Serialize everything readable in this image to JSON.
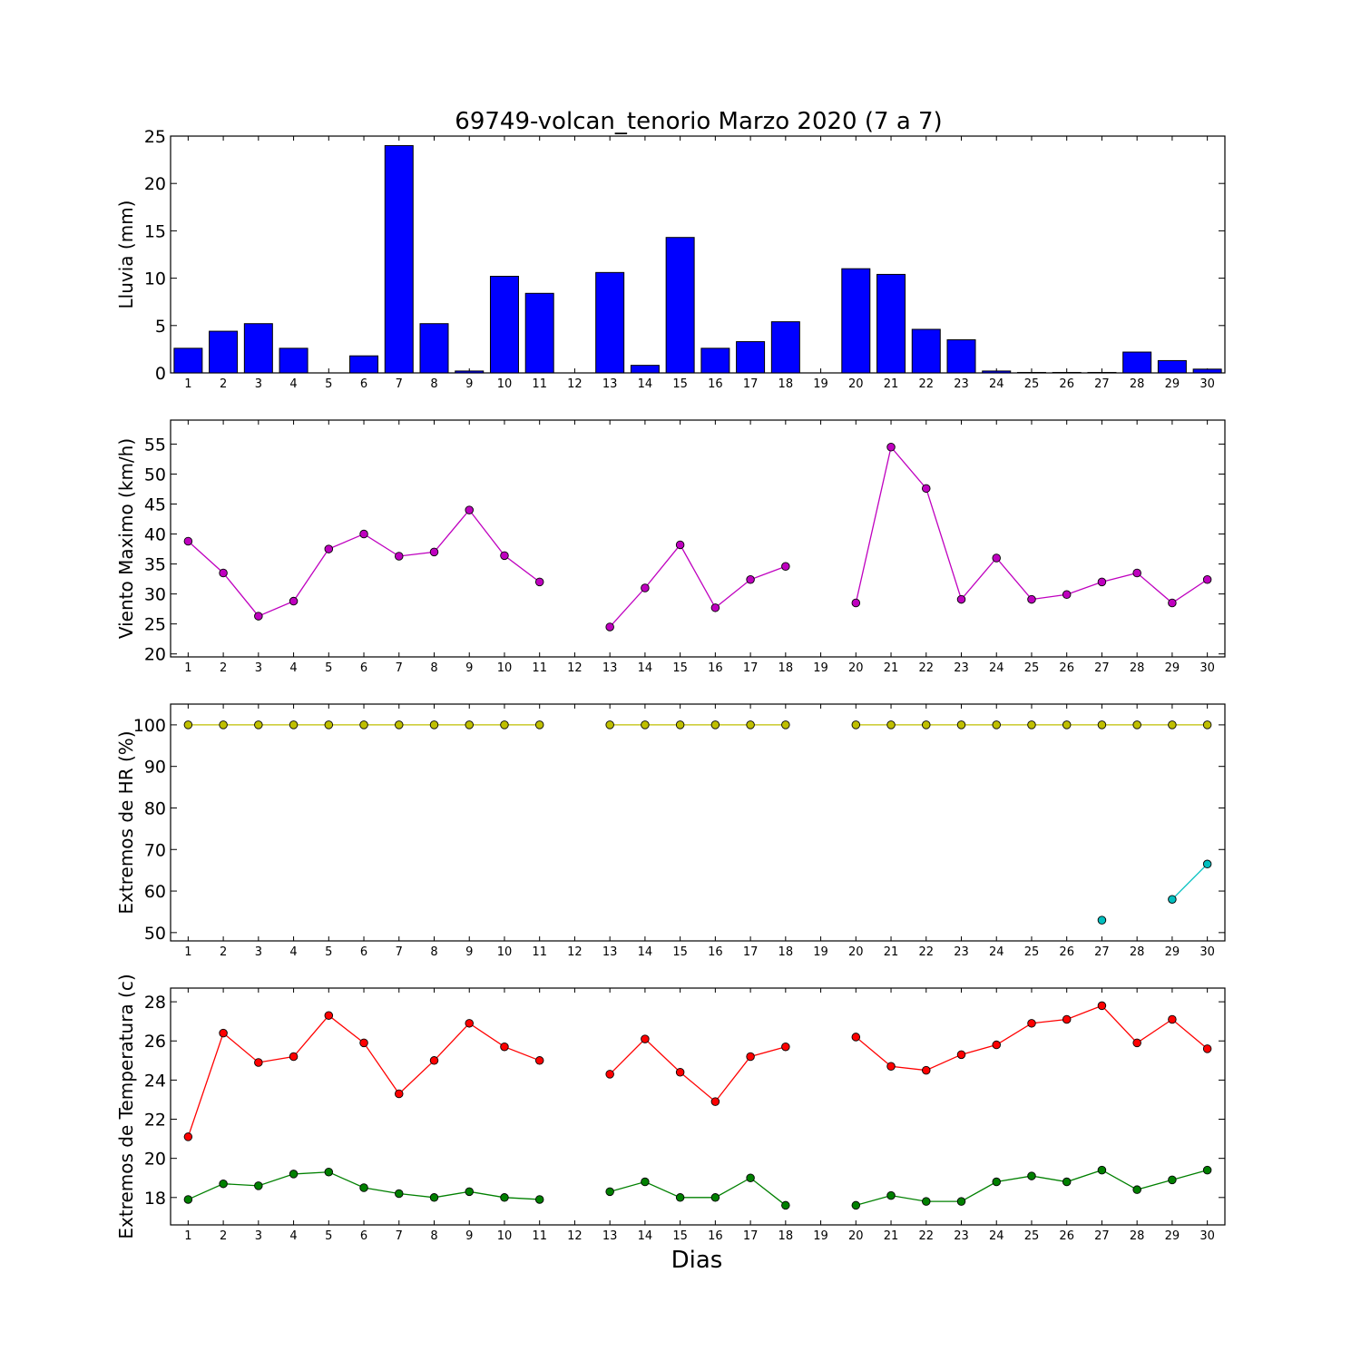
{
  "title": "69749-volcan_tenorio Marzo 2020  (7 a 7)",
  "xlabel": "Dias",
  "chart_data": [
    {
      "type": "bar",
      "ylabel": "Lluvia (mm)",
      "ylim": [
        0,
        25
      ],
      "yticks": [
        0,
        5,
        10,
        15,
        20,
        25
      ],
      "x": [
        1,
        2,
        3,
        4,
        5,
        6,
        7,
        8,
        9,
        10,
        11,
        12,
        13,
        14,
        15,
        16,
        17,
        18,
        19,
        20,
        21,
        22,
        23,
        24,
        25,
        26,
        27,
        28,
        29,
        30
      ],
      "series": [
        {
          "color": "#0000ff",
          "values": [
            2.6,
            4.4,
            5.2,
            2.6,
            0,
            1.8,
            24.0,
            5.2,
            0.2,
            10.2,
            8.4,
            null,
            10.6,
            0.8,
            14.3,
            2.6,
            3.3,
            5.4,
            null,
            11.0,
            10.4,
            4.6,
            3.5,
            0.2,
            0.05,
            0.05,
            0.05,
            2.2,
            1.3,
            0.4
          ]
        }
      ]
    },
    {
      "type": "line",
      "ylabel": "Viento Maximo (km/h)",
      "ylim": [
        19.5,
        59
      ],
      "yticks": [
        20,
        25,
        30,
        35,
        40,
        45,
        50,
        55
      ],
      "x": [
        1,
        2,
        3,
        4,
        5,
        6,
        7,
        8,
        9,
        10,
        11,
        12,
        13,
        14,
        15,
        16,
        17,
        18,
        19,
        20,
        21,
        22,
        23,
        24,
        25,
        26,
        27,
        28,
        29,
        30
      ],
      "series": [
        {
          "color": "#bf00bf",
          "values": [
            38.8,
            33.5,
            26.3,
            28.8,
            37.5,
            40.0,
            36.3,
            37.0,
            44.0,
            36.4,
            32.0,
            null,
            24.5,
            31.0,
            38.2,
            27.7,
            32.4,
            34.6,
            null,
            28.5,
            54.5,
            47.6,
            29.1,
            36.0,
            29.1,
            29.9,
            32.0,
            33.5,
            28.5,
            32.4
          ]
        }
      ]
    },
    {
      "type": "line",
      "ylabel": "Extremos de HR (%)",
      "ylim": [
        48,
        105
      ],
      "yticks": [
        50,
        60,
        70,
        80,
        90,
        100
      ],
      "x": [
        1,
        2,
        3,
        4,
        5,
        6,
        7,
        8,
        9,
        10,
        11,
        12,
        13,
        14,
        15,
        16,
        17,
        18,
        19,
        20,
        21,
        22,
        23,
        24,
        25,
        26,
        27,
        28,
        29,
        30
      ],
      "series": [
        {
          "color": "#bfbf00",
          "values": [
            100,
            100,
            100,
            100,
            100,
            100,
            100,
            100,
            100,
            100,
            100,
            null,
            100,
            100,
            100,
            100,
            100,
            100,
            null,
            100,
            100,
            100,
            100,
            100,
            100,
            100,
            100,
            100,
            100,
            100
          ]
        },
        {
          "color": "#00bfbf",
          "values": [
            null,
            null,
            null,
            null,
            null,
            null,
            null,
            null,
            null,
            null,
            null,
            null,
            null,
            null,
            null,
            null,
            null,
            null,
            null,
            null,
            null,
            null,
            null,
            null,
            null,
            null,
            53,
            null,
            58,
            66.5
          ]
        }
      ]
    },
    {
      "type": "line",
      "ylabel": "Extremos de Temperatura (c)",
      "ylim": [
        16.6,
        28.7
      ],
      "yticks": [
        18,
        20,
        22,
        24,
        26,
        28
      ],
      "x": [
        1,
        2,
        3,
        4,
        5,
        6,
        7,
        8,
        9,
        10,
        11,
        12,
        13,
        14,
        15,
        16,
        17,
        18,
        19,
        20,
        21,
        22,
        23,
        24,
        25,
        26,
        27,
        28,
        29,
        30
      ],
      "series": [
        {
          "color": "#ff0000",
          "values": [
            21.1,
            26.4,
            24.9,
            25.2,
            27.3,
            25.9,
            23.3,
            25.0,
            26.9,
            25.7,
            25.0,
            null,
            24.3,
            26.1,
            24.4,
            22.9,
            25.2,
            25.7,
            null,
            26.2,
            24.7,
            24.5,
            25.3,
            25.8,
            26.9,
            27.1,
            27.8,
            25.9,
            27.1,
            25.6
          ]
        },
        {
          "color": "#008000",
          "values": [
            17.9,
            18.7,
            18.6,
            19.2,
            19.3,
            18.5,
            18.2,
            18.0,
            18.3,
            18.0,
            17.9,
            null,
            18.3,
            18.8,
            18.0,
            18.0,
            19.0,
            17.6,
            null,
            17.6,
            18.1,
            17.8,
            17.8,
            18.8,
            19.1,
            18.8,
            19.4,
            18.4,
            18.9,
            19.4
          ]
        }
      ]
    }
  ]
}
